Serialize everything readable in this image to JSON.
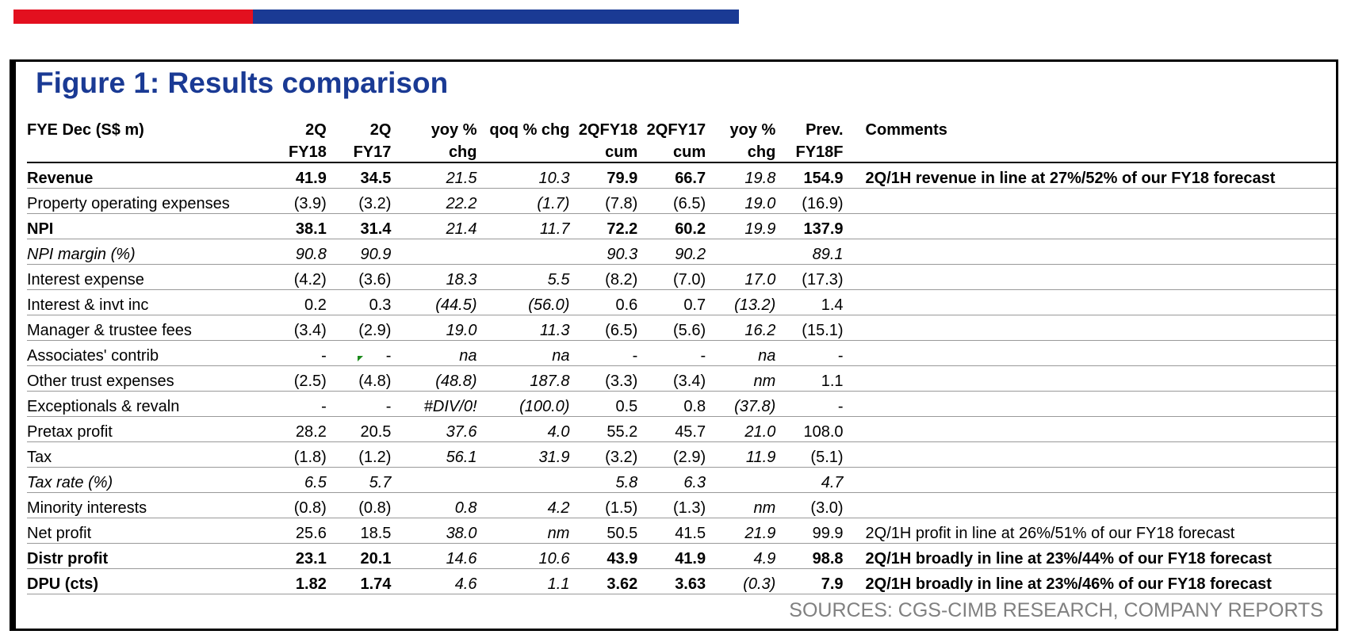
{
  "figure_title": "Figure 1: Results comparison",
  "header": {
    "row1": [
      "FYE Dec (S$ m)",
      "2Q",
      "2Q",
      "yoy %",
      "qoq % chg",
      "2QFY18",
      "2QFY17",
      "yoy %",
      "Prev.",
      "Comments"
    ],
    "row2": [
      "",
      "FY18",
      "FY17",
      "chg",
      "",
      "cum",
      "cum",
      "chg",
      "FY18F",
      ""
    ]
  },
  "rows": [
    {
      "label": "Revenue",
      "v": [
        "41.9",
        "34.5",
        "21.5",
        "10.3",
        "79.9",
        "66.7",
        "19.8",
        "154.9"
      ],
      "comment": "2Q/1H revenue in line at 27%/52% of our FY18 forecast",
      "style": "bold"
    },
    {
      "label": "Property operating expenses",
      "v": [
        "(3.9)",
        "(3.2)",
        "22.2",
        "(1.7)",
        "(7.8)",
        "(6.5)",
        "19.0",
        "(16.9)"
      ],
      "comment": "",
      "style": "normal"
    },
    {
      "label": "NPI",
      "v": [
        "38.1",
        "31.4",
        "21.4",
        "11.7",
        "72.2",
        "60.2",
        "19.9",
        "137.9"
      ],
      "comment": "",
      "style": "bold"
    },
    {
      "label": "NPI margin (%)",
      "v": [
        "90.8",
        "90.9",
        "",
        "",
        "90.3",
        "90.2",
        "",
        "89.1"
      ],
      "comment": "",
      "style": "ital"
    },
    {
      "label": "Interest expense",
      "v": [
        "(4.2)",
        "(3.6)",
        "18.3",
        "5.5",
        "(8.2)",
        "(7.0)",
        "17.0",
        "(17.3)"
      ],
      "comment": "",
      "style": "normal"
    },
    {
      "label": "Interest & invt inc",
      "v": [
        "0.2",
        "0.3",
        "(44.5)",
        "(56.0)",
        "0.6",
        "0.7",
        "(13.2)",
        "1.4"
      ],
      "comment": "",
      "style": "normal"
    },
    {
      "label": "Manager & trustee fees",
      "v": [
        "(3.4)",
        "(2.9)",
        "19.0",
        "11.3",
        "(6.5)",
        "(5.6)",
        "16.2",
        "(15.1)"
      ],
      "comment": "",
      "style": "normal"
    },
    {
      "label": "Associates' contrib",
      "v": [
        "-",
        "-",
        "na",
        "na",
        "-",
        "-",
        "na",
        "-"
      ],
      "comment": "",
      "style": "normal"
    },
    {
      "label": "Other trust expenses",
      "v": [
        "(2.5)",
        "(4.8)",
        "(48.8)",
        "187.8",
        "(3.3)",
        "(3.4)",
        "nm",
        "1.1"
      ],
      "comment": "",
      "style": "normal"
    },
    {
      "label": "Exceptionals & revaln",
      "v": [
        "-",
        "-",
        "#DIV/0!",
        "(100.0)",
        "0.5",
        "0.8",
        "(37.8)",
        "-"
      ],
      "comment": "",
      "style": "normal"
    },
    {
      "label": "Pretax profit",
      "v": [
        "28.2",
        "20.5",
        "37.6",
        "4.0",
        "55.2",
        "45.7",
        "21.0",
        "108.0"
      ],
      "comment": "",
      "style": "normal"
    },
    {
      "label": "Tax",
      "v": [
        "(1.8)",
        "(1.2)",
        "56.1",
        "31.9",
        "(3.2)",
        "(2.9)",
        "11.9",
        "(5.1)"
      ],
      "comment": "",
      "style": "normal"
    },
    {
      "label": "Tax rate (%)",
      "v": [
        "6.5",
        "5.7",
        "",
        "",
        "5.8",
        "6.3",
        "",
        "4.7"
      ],
      "comment": "",
      "style": "ital"
    },
    {
      "label": "Minority interests",
      "v": [
        "(0.8)",
        "(0.8)",
        "0.8",
        "4.2",
        "(1.5)",
        "(1.3)",
        "nm",
        "(3.0)"
      ],
      "comment": "",
      "style": "normal"
    },
    {
      "label": "Net profit",
      "v": [
        "25.6",
        "18.5",
        "38.0",
        "nm",
        "50.5",
        "41.5",
        "21.9",
        "99.9"
      ],
      "comment": "2Q/1H profit in line at 26%/51% of our FY18 forecast",
      "style": "normal"
    },
    {
      "label": "Distr profit",
      "v": [
        "23.1",
        "20.1",
        "14.6",
        "10.6",
        "43.9",
        "41.9",
        "4.9",
        "98.8"
      ],
      "comment": "2Q/1H broadly in line at 23%/44% of our FY18 forecast",
      "style": "bold"
    },
    {
      "label": "DPU (cts)",
      "v": [
        "1.82",
        "1.74",
        "4.6",
        "1.1",
        "3.62",
        "3.63",
        "(0.3)",
        "7.9"
      ],
      "comment": "2Q/1H broadly in line at 23%/46% of our FY18 forecast",
      "style": "bold"
    }
  ],
  "source": "SOURCES: CGS-CIMB RESEARCH, COMPANY REPORTS",
  "colors": {
    "brand_red": "#e3101f",
    "brand_blue": "#1a3a94",
    "source_gray": "#808080"
  }
}
